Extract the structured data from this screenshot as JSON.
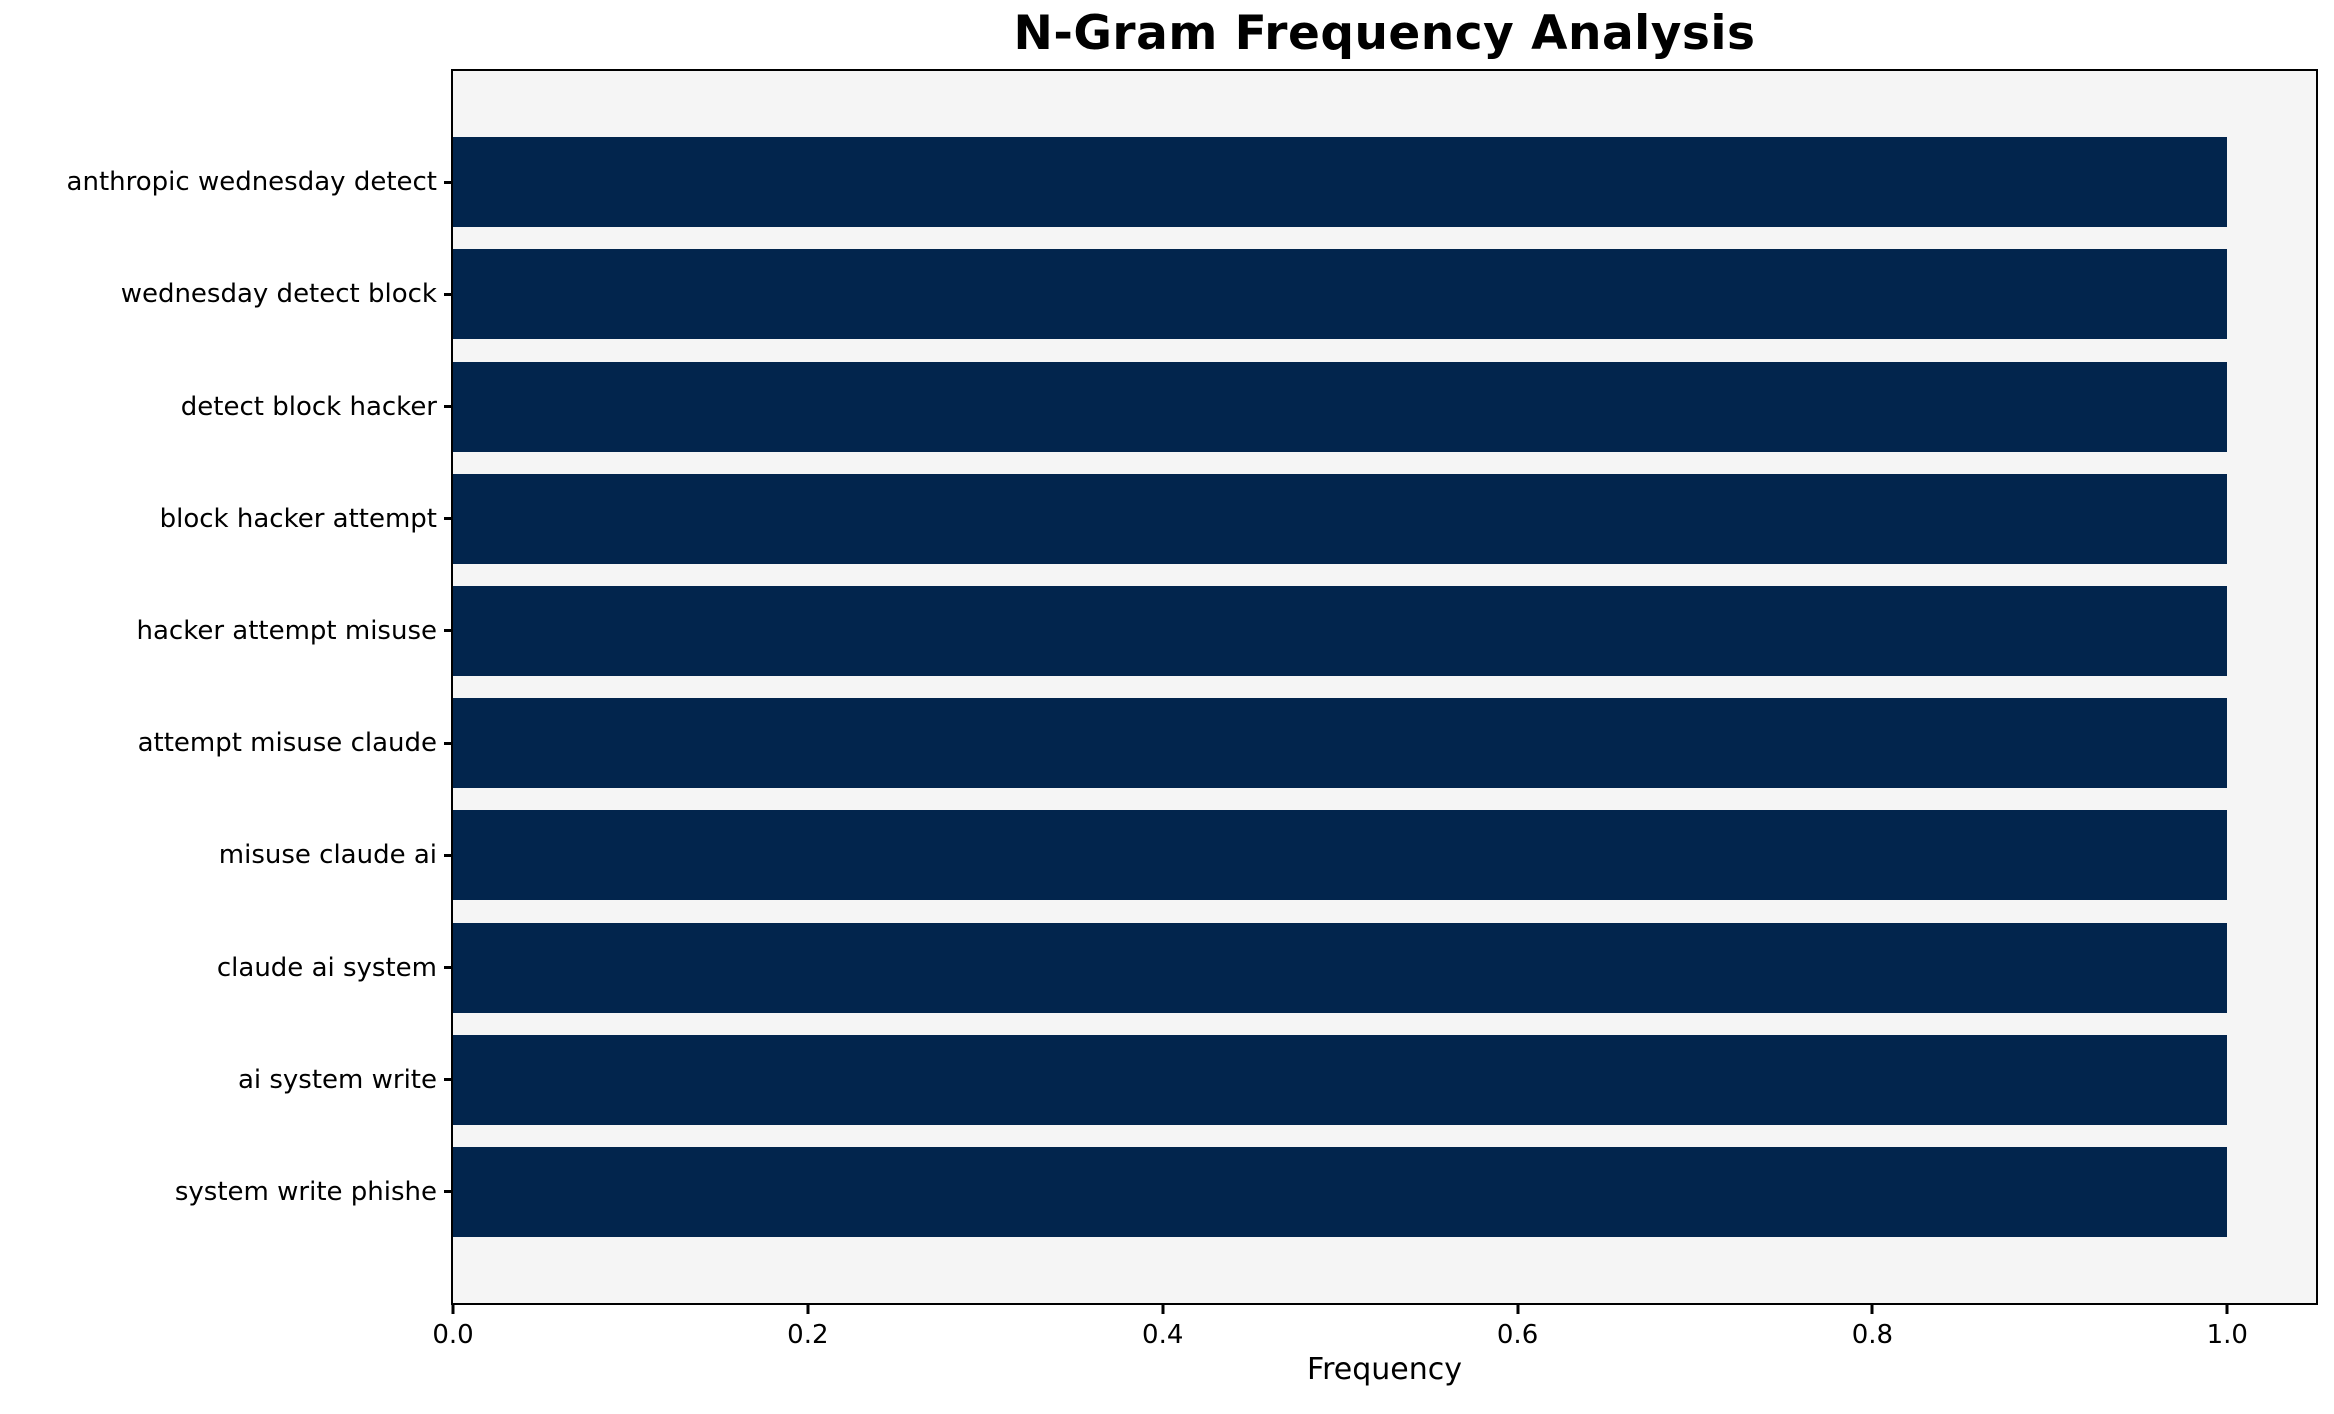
{
  "chart_data": {
    "type": "bar",
    "orientation": "horizontal",
    "title": "N-Gram Frequency Analysis",
    "xlabel": "Frequency",
    "ylabel": "",
    "categories": [
      "anthropic wednesday detect",
      "wednesday detect block",
      "detect block hacker",
      "block hacker attempt",
      "hacker attempt misuse",
      "attempt misuse claude",
      "misuse claude ai",
      "claude ai system",
      "ai system write",
      "system write phishe"
    ],
    "values": [
      1.0,
      1.0,
      1.0,
      1.0,
      1.0,
      1.0,
      1.0,
      1.0,
      1.0,
      1.0
    ],
    "xlim": [
      0,
      1.05
    ],
    "x_tick_values": [
      0.0,
      0.2,
      0.4,
      0.6,
      0.8,
      1.0
    ],
    "x_tick_labels": [
      "0.0",
      "0.2",
      "0.4",
      "0.6",
      "0.8",
      "1.0"
    ],
    "grid": false,
    "legend": null,
    "bar_color": "#02254d",
    "plot_bg": "#f5f5f5",
    "figure_bg": "#ffffff",
    "text_color": "#000000",
    "spine_color": "#000000"
  }
}
